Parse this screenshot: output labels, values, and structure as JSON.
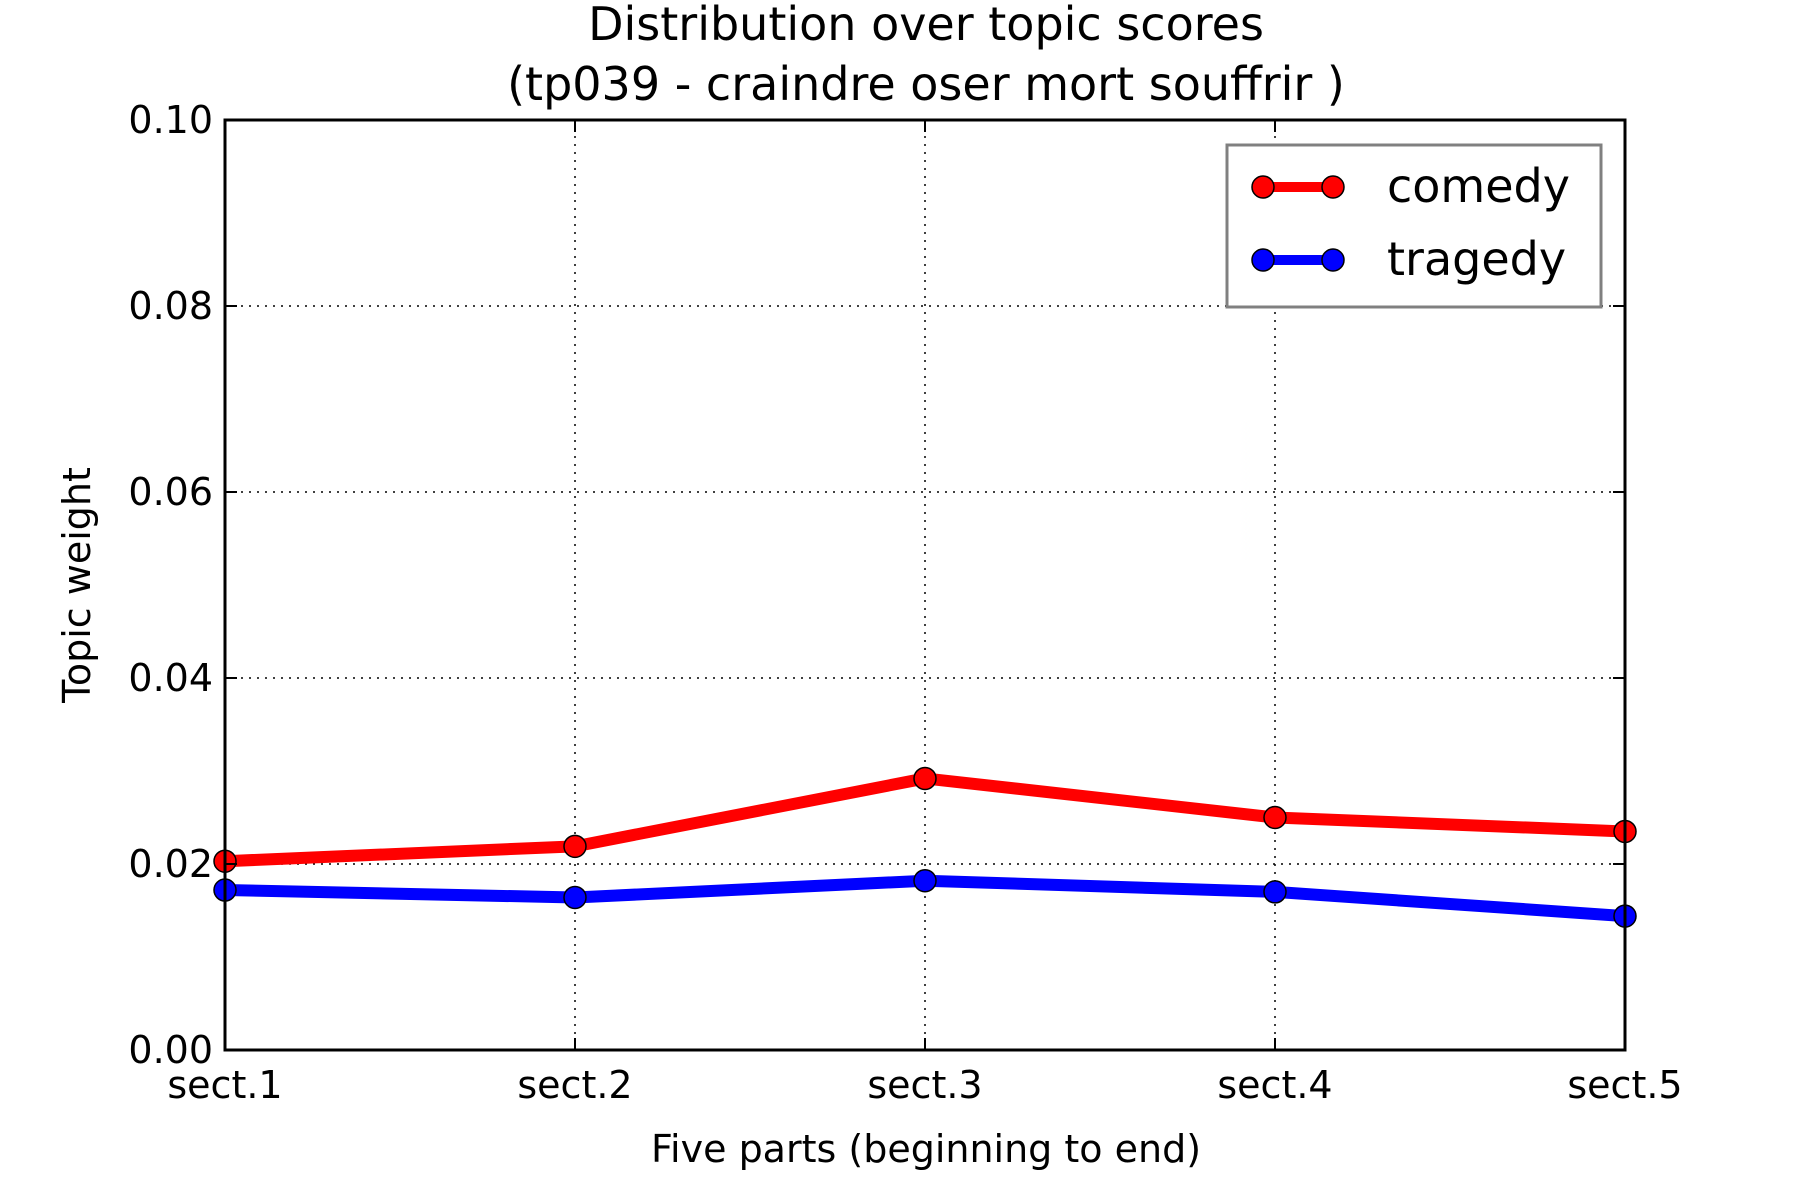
{
  "chart_data": {
    "type": "line",
    "title": "Distribution over topic scores",
    "subtitle": "(tp039 - craindre oser mort souffrir )",
    "xlabel": "Five parts (beginning to end)",
    "ylabel": "Topic weight",
    "categories": [
      "sect.1",
      "sect.2",
      "sect.3",
      "sect.4",
      "sect.5"
    ],
    "y_ticks": [
      "0.00",
      "0.02",
      "0.04",
      "0.06",
      "0.08",
      "0.10"
    ],
    "ylim": [
      0,
      0.1
    ],
    "grid": true,
    "legend_position": "top-right",
    "series": [
      {
        "name": "comedy",
        "color": "#ff0000",
        "values": [
          0.0203,
          0.0219,
          0.0292,
          0.025,
          0.0235
        ]
      },
      {
        "name": "tragedy",
        "color": "#0000ff",
        "values": [
          0.0172,
          0.0164,
          0.0182,
          0.017,
          0.0144
        ]
      }
    ]
  }
}
